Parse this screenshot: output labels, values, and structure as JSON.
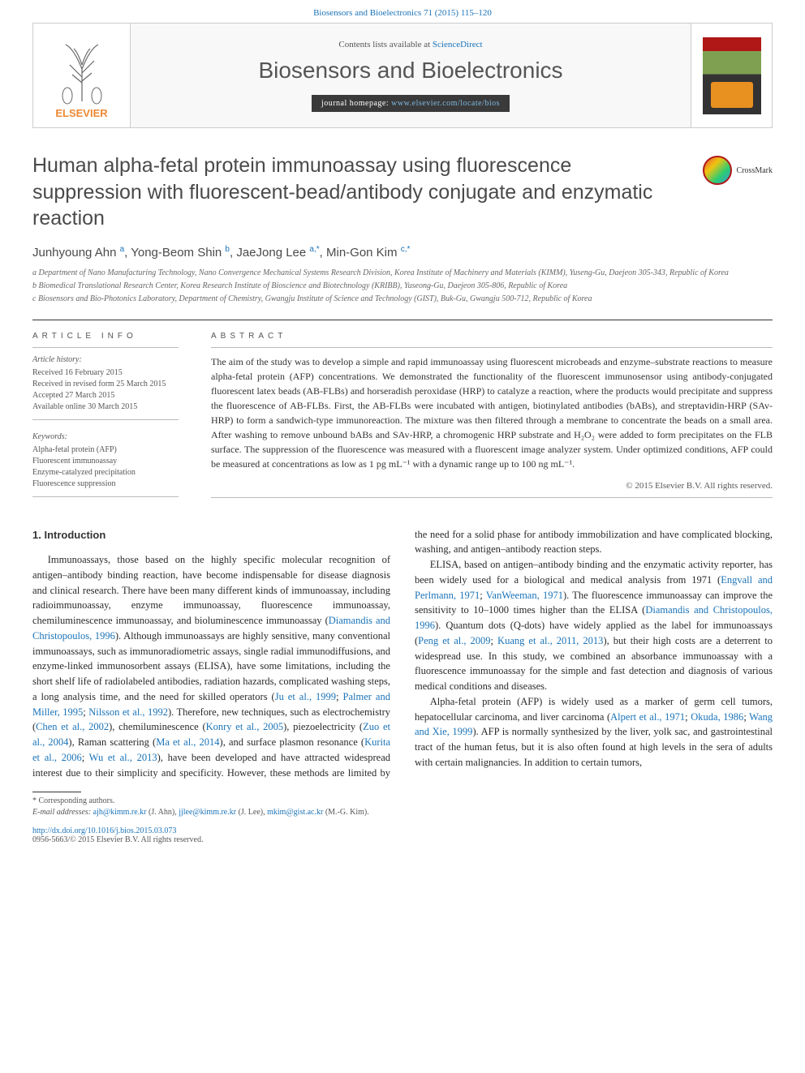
{
  "top_link": {
    "text": "Biosensors and Bioelectronics 71 (2015) 115–120",
    "href": "#"
  },
  "header": {
    "publisher": "ELSEVIER",
    "contents_prefix": "Contents lists available at ",
    "contents_link": "ScienceDirect",
    "journal": "Biosensors and Bioelectronics",
    "homepage_label": "journal homepage: ",
    "homepage_url": "www.elsevier.com/locate/bios"
  },
  "crossmark": "CrossMark",
  "title": "Human alpha-fetal protein immunoassay using fluorescence suppression with fluorescent-bead/antibody conjugate and enzymatic reaction",
  "authors_html": "Junhyoung Ahn <sup>a</sup>, Yong-Beom Shin <sup>b</sup>, JaeJong Lee <sup>a,<span class='star'>*</span></sup>, Min-Gon Kim <sup>c,<span class='star'>*</span></sup>",
  "affiliations": [
    "a Department of Nano Manufacturing Technology, Nano Convergence Mechanical Systems Research Division, Korea Institute of Machinery and Materials (KIMM), Yuseng-Gu, Daejeon 305-343, Republic of Korea",
    "b Biomedical Translational Research Center, Korea Research Institute of Bioscience and Biotechnology (KRIBB), Yuseong-Gu, Daejeon 305-806, Republic of Korea",
    "c Biosensors and Bio-Photonics Laboratory, Department of Chemistry, Gwangju Institute of Science and Technology (GIST), Buk-Gu, Gwangju 500-712, Republic of Korea"
  ],
  "article_info": {
    "label": "ARTICLE INFO",
    "history_hdr": "Article history:",
    "history": [
      "Received 16 February 2015",
      "Received in revised form 25 March 2015",
      "Accepted 27 March 2015",
      "Available online 30 March 2015"
    ],
    "keywords_hdr": "Keywords:",
    "keywords": [
      "Alpha-fetal protein (AFP)",
      "Fluorescent immunoassay",
      "Enzyme-catalyzed precipitation",
      "Fluorescence suppression"
    ]
  },
  "abstract": {
    "label": "ABSTRACT",
    "text": "The aim of the study was to develop a simple and rapid immunoassay using fluorescent microbeads and enzyme–substrate reactions to measure alpha-fetal protein (AFP) concentrations. We demonstrated the functionality of the fluorescent immunosensor using antibody-conjugated fluorescent latex beads (AB-FLBs) and horseradish peroxidase (HRP) to catalyze a reaction, where the products would precipitate and suppress the fluorescence of AB-FLBs. First, the AB-FLBs were incubated with antigen, biotinylated antibodies (bABs), and streptavidin-HRP (SAv-HRP) to form a sandwich-type immunoreaction. The mixture was then filtered through a membrane to concentrate the beads on a small area. After washing to remove unbound bABs and SAv-HRP, a chromogenic HRP substrate and H₂O₂ were added to form precipitates on the FLB surface. The suppression of the fluorescence was measured with a fluorescent image analyzer system. Under optimized conditions, AFP could be measured at concentrations as low as 1 pg mL⁻¹ with a dynamic range up to 100 ng mL⁻¹.",
    "copyright": "© 2015 Elsevier B.V. All rights reserved."
  },
  "intro": {
    "heading": "1. Introduction",
    "p1_a": "Immunoassays, those based on the highly specific molecular recognition of antigen–antibody binding reaction, have become indispensable for disease diagnosis and clinical research. There have been many different kinds of immunoassay, including radioimmunoassay, enzyme immunoassay, fluorescence immunoassay, chemiluminescence immunoassay, and bioluminescence immunoassay (",
    "p1_r1": "Diamandis and Christopoulos, 1996",
    "p1_b": "). Although immunoassays are highly sensitive, many conventional immunoassays, such as immunoradiometric assays, single radial immunodiffusions, and enzyme-linked immunosorbent assays (ELISA), have some limitations, including the short shelf life of radiolabeled antibodies, radiation hazards, complicated washing steps, a long analysis time, and the need for skilled operators (",
    "p1_r2": "Ju et al., 1999",
    "p1_c": "; ",
    "p1_r3": "Palmer and Miller, 1995",
    "p1_d": "; ",
    "p1_r4": "Nilsson et al., 1992",
    "p1_e": "). Therefore, new techniques, such as electrochemistry (",
    "p1_r5": "Chen et al., 2002",
    "p1_f": "), chemiluminescence (",
    "p1_r6": "Konry et al., 2005",
    "p1_g": "), piezoelectricity (",
    "p1_r7": "Zuo et al., 2004",
    "p1_h": "), Raman scattering (",
    "p1_r8": "Ma et al., 2014",
    "p1_i": "), and surface plasmon resonance (",
    "p1_r9": "Kurita et al., 2006",
    "p1_j": "; ",
    "p1_r10": "Wu et al., 2013",
    "p1_k": "), have been developed and have attracted widespread interest due to their simplicity and specificity. However, these methods are limited by the need for a solid phase for antibody immobilization and have complicated blocking, washing, and antigen–antibody reaction steps.",
    "p2_a": "ELISA, based on antigen–antibody binding and the enzymatic activity reporter, has been widely used for a biological and medical analysis from 1971 (",
    "p2_r1": "Engvall and Perlmann, 1971",
    "p2_b": "; ",
    "p2_r2": "VanWeeman, 1971",
    "p2_c": "). The fluorescence immunoassay can improve the sensitivity to 10–1000 times higher than the ELISA (",
    "p2_r3": "Diamandis and Christopoulos, 1996",
    "p2_d": "). Quantum dots (Q-dots) have widely applied as the label for immunoassays (",
    "p2_r4": "Peng et al., 2009",
    "p2_e": "; ",
    "p2_r5": "Kuang et al., 2011, 2013",
    "p2_f": "), but their high costs are a deterrent to widespread use. In this study, we combined an absorbance immunoassay with a fluorescence immunoassay for the simple and fast detection and diagnosis of various medical conditions and diseases.",
    "p3_a": "Alpha-fetal protein (AFP) is widely used as a marker of germ cell tumors, hepatocellular carcinoma, and liver carcinoma (",
    "p3_r1": "Alpert et al., 1971",
    "p3_b": "; ",
    "p3_r2": "Okuda, 1986",
    "p3_c": "; ",
    "p3_r3": "Wang and Xie, 1999",
    "p3_d": "). AFP is normally synthesized by the liver, yolk sac, and gastrointestinal tract of the human fetus, but it is also often found at high levels in the sera of adults with certain malignancies. In addition to certain tumors,"
  },
  "footnotes": {
    "corr": "* Corresponding authors.",
    "emails_label": "E-mail addresses: ",
    "e1": "ajh@kimm.re.kr",
    "e1_who": " (J. Ahn), ",
    "e2": "jjlee@kimm.re.kr",
    "e2_who": " (J. Lee), ",
    "e3": "mkim@gist.ac.kr",
    "e3_who": " (M.-G. Kim)."
  },
  "doi": {
    "url": "http://dx.doi.org/10.1016/j.bios.2015.03.073",
    "issn": "0956-5663/© 2015 Elsevier B.V. All rights reserved."
  },
  "colors": {
    "link": "#1a73b8",
    "brand": "#ee8833",
    "text": "#333333",
    "muted": "#555555",
    "rule": "#333333"
  }
}
